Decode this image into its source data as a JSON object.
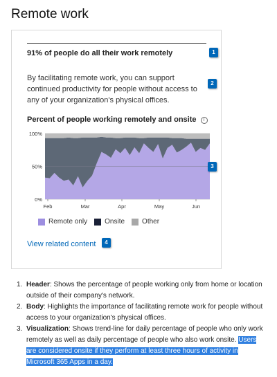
{
  "page": {
    "title": "Remote work"
  },
  "card": {
    "header": "91% of people do all their work remotely",
    "body": "By facilitating remote work, you can support continued productivity for people without access to any of your organization's physical offices.",
    "chart_title": "Percent of people working remotely and onsite",
    "info_icon": "info-icon",
    "link": "View related content"
  },
  "callouts": [
    "1",
    "2",
    "3",
    "4"
  ],
  "colors": {
    "remote": "#b4a7e6",
    "onsite": "#5d6876",
    "other": "#bdbdbd",
    "accent": "#0067b8"
  },
  "chart_data": {
    "type": "area",
    "stacked": true,
    "title": "Percent of people working remotely and onsite",
    "y_ticks": [
      "100%",
      "50%",
      "0%"
    ],
    "x_ticks": [
      "Feb",
      "Mar",
      "Apr",
      "May",
      "Jun"
    ],
    "ylim": [
      0,
      100
    ],
    "series": [
      {
        "name": "Remote only",
        "color": "#b4a7e6",
        "values": [
          33,
          32,
          40,
          33,
          28,
          30,
          21,
          35,
          18,
          28,
          36,
          55,
          72,
          68,
          63,
          76,
          70,
          78,
          67,
          79,
          70,
          85,
          78,
          72,
          84,
          62,
          78,
          83,
          71,
          75,
          80,
          86,
          72,
          78,
          75,
          85
        ]
      },
      {
        "name": "Onsite",
        "color": "#5d6876",
        "values": [
          60,
          61,
          53,
          60,
          65,
          64,
          72,
          58,
          76,
          66,
          58,
          39,
          23,
          26,
          31,
          17,
          23,
          16,
          27,
          15,
          23,
          8,
          16,
          22,
          10,
          32,
          16,
          10,
          22,
          18,
          12,
          6,
          20,
          14,
          17,
          7
        ]
      },
      {
        "name": "Other",
        "color": "#bdbdbd",
        "values": [
          7,
          7,
          7,
          7,
          7,
          6,
          7,
          7,
          6,
          6,
          6,
          6,
          5,
          6,
          6,
          7,
          7,
          6,
          6,
          6,
          7,
          7,
          6,
          6,
          6,
          6,
          6,
          7,
          7,
          7,
          8,
          8,
          8,
          8,
          8,
          8
        ]
      }
    ],
    "legend": [
      "Remote only",
      "Onsite",
      "Other"
    ]
  },
  "notes": [
    {
      "num": "1.",
      "label": "Header",
      "text": ": Shows the percentage of people working only from home or location outside of their company's network."
    },
    {
      "num": "2.",
      "label": "Body",
      "text": ": Highlights the importance of facilitating remote work for people without access to your organization's physical offices."
    },
    {
      "num": "3.",
      "label": "Visualization",
      "text": ": Shows trend-line for daily percentage of people who only work remotely as well as daily percentage of people who also work onsite. ",
      "highlight": "Users are considered onsite if they perform at least three hours of activity in Microsoft 365 Apps in a day."
    }
  ]
}
